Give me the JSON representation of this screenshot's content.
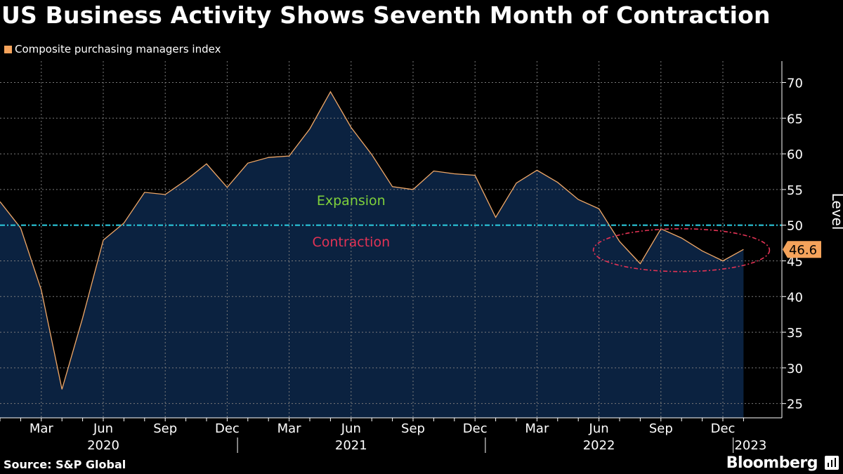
{
  "header": {
    "title": "US Business Activity Shows Seventh Month of Contraction",
    "legend_label": "Composite purchasing managers index"
  },
  "footer": {
    "source": "Source: S&P Global",
    "brand": "Bloomberg",
    "brand_icon": "bloomberg-terminal-icon"
  },
  "colors": {
    "background": "#000000",
    "line": "#f0a868",
    "legend_swatch": "#f5a35b",
    "area_fill": "#0b2240",
    "threshold": "#2bc4d8",
    "expansion_text": "#7fd13b",
    "contraction_text": "#e33355",
    "grid": "#7a7a7a"
  },
  "chart_data": {
    "type": "area",
    "title": "US Business Activity Shows Seventh Month of Contraction",
    "ylabel": "Level",
    "ylim": [
      23,
      73
    ],
    "yticks": [
      25,
      30,
      35,
      40,
      45,
      50,
      55,
      60,
      65,
      70
    ],
    "x": [
      "2020-01",
      "2020-02",
      "2020-03",
      "2020-04",
      "2020-05",
      "2020-06",
      "2020-07",
      "2020-08",
      "2020-09",
      "2020-10",
      "2020-11",
      "2020-12",
      "2021-01",
      "2021-02",
      "2021-03",
      "2021-04",
      "2021-05",
      "2021-06",
      "2021-07",
      "2021-08",
      "2021-09",
      "2021-10",
      "2021-11",
      "2021-12",
      "2022-01",
      "2022-02",
      "2022-03",
      "2022-04",
      "2022-05",
      "2022-06",
      "2022-07",
      "2022-08",
      "2022-09",
      "2022-10",
      "2022-11",
      "2022-12",
      "2023-01"
    ],
    "series": [
      {
        "name": "Composite purchasing managers index",
        "values": [
          53.3,
          49.6,
          40.9,
          27.0,
          37.0,
          47.9,
          50.3,
          54.6,
          54.3,
          56.3,
          58.6,
          55.3,
          58.7,
          59.5,
          59.7,
          63.5,
          68.7,
          63.7,
          59.9,
          55.4,
          55.0,
          57.6,
          57.2,
          57.0,
          51.1,
          55.9,
          57.7,
          56.0,
          53.6,
          52.3,
          47.7,
          44.6,
          49.5,
          48.2,
          46.4,
          45.0,
          46.6
        ]
      }
    ],
    "month_ticks": [
      {
        "x": "2020-03",
        "label": "Mar"
      },
      {
        "x": "2020-06",
        "label": "Jun"
      },
      {
        "x": "2020-09",
        "label": "Sep"
      },
      {
        "x": "2020-12",
        "label": "Dec"
      },
      {
        "x": "2021-03",
        "label": "Mar"
      },
      {
        "x": "2021-06",
        "label": "Jun"
      },
      {
        "x": "2021-09",
        "label": "Sep"
      },
      {
        "x": "2021-12",
        "label": "Dec"
      },
      {
        "x": "2022-03",
        "label": "Mar"
      },
      {
        "x": "2022-06",
        "label": "Jun"
      },
      {
        "x": "2022-09",
        "label": "Sep"
      },
      {
        "x": "2022-12",
        "label": "Dec"
      }
    ],
    "year_labels": [
      {
        "label": "2020",
        "x": "2020-06"
      },
      {
        "label": "2021",
        "x": "2021-06"
      },
      {
        "label": "2022",
        "x": "2022-06"
      },
      {
        "label": "2023",
        "x": "2023-01"
      }
    ],
    "reference_line": {
      "y": 50
    },
    "annotations": [
      {
        "text": "Expansion",
        "x": "2021-06",
        "y": 52.8,
        "color": "#7fd13b"
      },
      {
        "text": "Contraction",
        "x": "2021-06",
        "y": 47.0,
        "color": "#e33355"
      }
    ],
    "highlight": {
      "x_from": "2022-06",
      "x_to": "2023-01",
      "y_from": 43.5,
      "y_to": 49.5,
      "color": "#e33355"
    },
    "last_value_label": "46.6",
    "grid": true
  }
}
